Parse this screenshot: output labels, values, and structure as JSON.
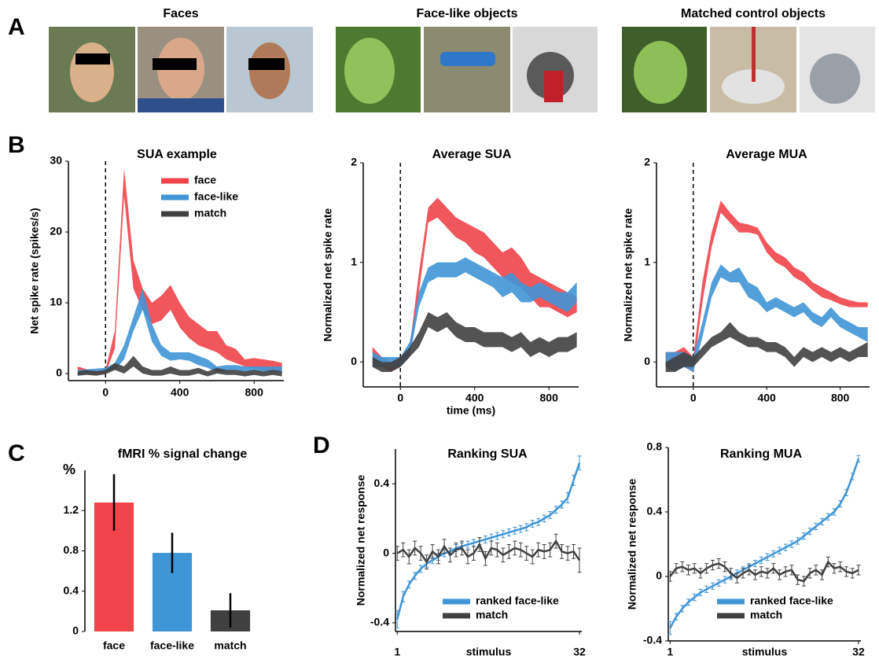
{
  "panel_labels": [
    "A",
    "B",
    "C",
    "D"
  ],
  "image_groups": [
    "Faces",
    "Face-like objects",
    "Matched control objects"
  ],
  "chart_data": [
    {
      "type": "area",
      "title": "SUA example",
      "ylabel": "Net spike rate (spikes/s)",
      "x": [
        -150,
        -100,
        -50,
        0,
        50,
        100,
        150,
        200,
        250,
        300,
        350,
        400,
        450,
        500,
        550,
        600,
        650,
        700,
        750,
        800,
        850,
        900,
        950
      ],
      "xlim": [
        -200,
        960
      ],
      "xticks": [
        0,
        400,
        800
      ],
      "ylim": [
        -1,
        30
      ],
      "yticks": [
        0,
        10,
        20,
        30
      ],
      "legend": true,
      "series": [
        {
          "name": "face",
          "color": "#f0444a",
          "upper": [
            1,
            0.6,
            0.5,
            0.6,
            6,
            29,
            16,
            12,
            10,
            11,
            12.5,
            10,
            8,
            7,
            6,
            6,
            4,
            3.5,
            2,
            2.2,
            2,
            1.8,
            1.5
          ],
          "lower": [
            0.2,
            0,
            -0.1,
            0,
            3.5,
            25,
            12,
            9,
            7,
            7.5,
            9,
            6.5,
            5,
            4,
            3.5,
            3,
            2,
            1.5,
            1,
            0.8,
            0.5,
            0.4,
            0.3
          ]
        },
        {
          "name": "face-like",
          "color": "#3f95d6",
          "upper": [
            0.5,
            0.6,
            0.7,
            0.8,
            1.5,
            4,
            8,
            12,
            7,
            4,
            3,
            3,
            3,
            2.5,
            2,
            1,
            1.2,
            1.2,
            1,
            1,
            1,
            1,
            1
          ],
          "lower": [
            -0.3,
            0,
            0.2,
            0.2,
            0.5,
            2,
            6,
            9,
            4.5,
            2.5,
            1.8,
            2,
            1.8,
            1.2,
            0.8,
            0.2,
            0.3,
            0.4,
            0.3,
            0.3,
            0.3,
            0.2,
            0.2
          ]
        },
        {
          "name": "match",
          "color": "#404040",
          "upper": [
            0.3,
            0.5,
            0.3,
            0.5,
            1.5,
            1,
            2.5,
            1,
            0.5,
            0.5,
            1,
            0.5,
            0.5,
            0.8,
            0.3,
            0.8,
            0.5,
            0.5,
            0.3,
            0.5,
            0.3,
            0.5,
            0.3
          ],
          "lower": [
            -0.3,
            -0.2,
            -0.3,
            -0.1,
            0.5,
            0,
            1,
            0,
            -0.3,
            -0.3,
            0,
            -0.3,
            -0.3,
            0,
            -0.4,
            0,
            -0.2,
            -0.2,
            -0.4,
            -0.2,
            -0.4,
            -0.2,
            -0.4
          ]
        }
      ]
    },
    {
      "type": "area",
      "title": "Average SUA",
      "ylabel": "Normalized net spike rate",
      "xlabel": "time (ms)",
      "x": [
        -150,
        -100,
        -50,
        0,
        50,
        100,
        150,
        200,
        250,
        300,
        350,
        400,
        450,
        500,
        550,
        600,
        650,
        700,
        750,
        800,
        850,
        900,
        950
      ],
      "xlim": [
        -200,
        960
      ],
      "xticks": [
        0,
        400,
        800
      ],
      "ylim": [
        -0.25,
        2
      ],
      "yticks": [
        0,
        1,
        2
      ],
      "series": [
        {
          "color": "#f0444a",
          "upper": [
            0.15,
            0.05,
            0,
            0.05,
            0.15,
            0.9,
            1.55,
            1.65,
            1.55,
            1.45,
            1.4,
            1.35,
            1.3,
            1.2,
            1.1,
            1.15,
            1.05,
            0.9,
            0.85,
            0.8,
            0.75,
            0.7,
            0.65
          ],
          "lower": [
            0,
            -0.05,
            -0.1,
            -0.05,
            0.05,
            0.7,
            1.4,
            1.45,
            1.35,
            1.25,
            1.2,
            1.1,
            1.05,
            0.95,
            0.85,
            0.8,
            0.75,
            0.65,
            0.55,
            0.55,
            0.5,
            0.45,
            0.5
          ]
        },
        {
          "color": "#3f95d6",
          "upper": [
            0.1,
            0.05,
            0.05,
            0.05,
            0.2,
            0.7,
            0.95,
            1,
            1,
            1,
            1.05,
            1,
            0.95,
            0.9,
            0.85,
            0.9,
            0.8,
            0.75,
            0.8,
            0.75,
            0.7,
            0.7,
            0.8
          ],
          "lower": [
            -0.05,
            -0.05,
            -0.05,
            -0.05,
            0.05,
            0.55,
            0.8,
            0.85,
            0.85,
            0.85,
            0.9,
            0.85,
            0.8,
            0.75,
            0.65,
            0.7,
            0.6,
            0.6,
            0.65,
            0.6,
            0.55,
            0.5,
            0.6
          ]
        },
        {
          "color": "#404040",
          "upper": [
            0.05,
            0,
            0,
            0.05,
            0.15,
            0.3,
            0.5,
            0.45,
            0.5,
            0.4,
            0.35,
            0.35,
            0.3,
            0.3,
            0.3,
            0.25,
            0.3,
            0.2,
            0.25,
            0.2,
            0.25,
            0.25,
            0.3
          ],
          "lower": [
            -0.05,
            -0.1,
            -0.1,
            -0.05,
            0.05,
            0.15,
            0.35,
            0.3,
            0.35,
            0.25,
            0.2,
            0.2,
            0.15,
            0.15,
            0.15,
            0.1,
            0.15,
            0.05,
            0.1,
            0.05,
            0.1,
            0.1,
            0.15
          ]
        }
      ]
    },
    {
      "type": "area",
      "title": "Average MUA",
      "ylabel": "Normalized net spike rate",
      "x": [
        -150,
        -100,
        -50,
        0,
        50,
        100,
        150,
        200,
        250,
        300,
        350,
        400,
        450,
        500,
        550,
        600,
        650,
        700,
        750,
        800,
        850,
        900,
        950
      ],
      "xlim": [
        -200,
        960
      ],
      "xticks": [
        0,
        400,
        800
      ],
      "ylim": [
        -0.25,
        2
      ],
      "yticks": [
        0,
        1,
        2
      ],
      "series": [
        {
          "color": "#f0444a",
          "upper": [
            0.1,
            0.1,
            0.15,
            0.05,
            0.8,
            1.3,
            1.62,
            1.5,
            1.4,
            1.38,
            1.35,
            1.2,
            1.1,
            1.05,
            0.95,
            0.9,
            0.8,
            0.75,
            0.7,
            0.65,
            0.62,
            0.6,
            0.6
          ],
          "lower": [
            -0.05,
            -0.05,
            -0.05,
            -0.1,
            0.6,
            1.15,
            1.5,
            1.4,
            1.3,
            1.3,
            1.28,
            1.1,
            1,
            0.95,
            0.85,
            0.8,
            0.72,
            0.65,
            0.62,
            0.58,
            0.55,
            0.55,
            0.55
          ]
        },
        {
          "color": "#3f95d6",
          "upper": [
            0.1,
            0.1,
            0.1,
            0.05,
            0.4,
            0.8,
            0.98,
            0.9,
            0.95,
            0.8,
            0.75,
            0.6,
            0.65,
            0.6,
            0.55,
            0.6,
            0.5,
            0.45,
            0.55,
            0.45,
            0.4,
            0.35,
            0.35
          ],
          "lower": [
            -0.05,
            -0.1,
            -0.05,
            -0.1,
            0.25,
            0.65,
            0.85,
            0.8,
            0.8,
            0.65,
            0.6,
            0.5,
            0.55,
            0.5,
            0.45,
            0.5,
            0.4,
            0.35,
            0.45,
            0.35,
            0.3,
            0.25,
            0.2
          ]
        },
        {
          "color": "#404040",
          "upper": [
            0,
            0.05,
            0.1,
            0.05,
            0.15,
            0.25,
            0.3,
            0.4,
            0.3,
            0.25,
            0.25,
            0.2,
            0.2,
            0.15,
            0.05,
            0.15,
            0.1,
            0.15,
            0.1,
            0.15,
            0.1,
            0.15,
            0.2
          ],
          "lower": [
            -0.1,
            -0.1,
            -0.05,
            -0.05,
            0.05,
            0.15,
            0.2,
            0.25,
            0.2,
            0.15,
            0.15,
            0.1,
            0.1,
            0.05,
            -0.05,
            0.05,
            0,
            0.05,
            0,
            0.05,
            0,
            0.05,
            0.05
          ]
        }
      ]
    },
    {
      "type": "bar",
      "title": "fMRI % signal change",
      "ylabel": "%",
      "categories": [
        "face",
        "face-like",
        "match"
      ],
      "values": [
        1.28,
        0.78,
        0.21
      ],
      "errors": [
        0.28,
        0.2,
        0.17
      ],
      "colors": [
        "#f0444a",
        "#3f95d6",
        "#404040"
      ],
      "ylim": [
        0,
        1.6
      ],
      "yticks": [
        0,
        0.4,
        0.8,
        1.2
      ]
    },
    {
      "type": "line",
      "title": "Ranking SUA",
      "ylabel": "Normalized net response",
      "xlabel": "stimulus",
      "x": [
        1,
        2,
        3,
        4,
        5,
        6,
        7,
        8,
        9,
        10,
        11,
        12,
        13,
        14,
        15,
        16,
        17,
        18,
        19,
        20,
        21,
        22,
        23,
        24,
        25,
        26,
        27,
        28,
        29,
        30,
        31,
        32
      ],
      "xlim": [
        0.7,
        32.4
      ],
      "xticks": [
        1,
        32
      ],
      "ylim": [
        -0.45,
        0.6
      ],
      "yticks": [
        -0.4,
        0,
        0.4
      ],
      "legend": true,
      "series": [
        {
          "name": "ranked face-like",
          "color": "#3f95d6",
          "values": [
            -0.38,
            -0.25,
            -0.18,
            -0.13,
            -0.09,
            -0.06,
            -0.04,
            -0.02,
            0,
            0.01,
            0.03,
            0.04,
            0.05,
            0.06,
            0.07,
            0.08,
            0.09,
            0.1,
            0.11,
            0.12,
            0.13,
            0.14,
            0.15,
            0.17,
            0.18,
            0.2,
            0.22,
            0.25,
            0.28,
            0.32,
            0.42,
            0.52
          ],
          "errors": [
            0.05,
            0.03,
            0.02,
            0.02,
            0.02,
            0.02,
            0.02,
            0.02,
            0.02,
            0.02,
            0.02,
            0.02,
            0.02,
            0.02,
            0.02,
            0.02,
            0.02,
            0.02,
            0.02,
            0.02,
            0.02,
            0.02,
            0.02,
            0.02,
            0.02,
            0.02,
            0.02,
            0.02,
            0.02,
            0.03,
            0.03,
            0.04
          ]
        },
        {
          "name": "match",
          "color": "#404040",
          "values": [
            0,
            0.02,
            -0.02,
            0.03,
            0,
            -0.05,
            0.01,
            -0.02,
            0.04,
            -0.01,
            0.02,
            0.03,
            -0.02,
            0,
            0.05,
            -0.03,
            0.03,
            0.02,
            -0.01,
            0.01,
            0.03,
            0.02,
            0,
            -0.02,
            0.02,
            0.01,
            0.02,
            0.07,
            0.01,
            0,
            0.01,
            -0.04
          ],
          "errors": [
            0.04,
            0.04,
            0.04,
            0.04,
            0.04,
            0.04,
            0.04,
            0.04,
            0.04,
            0.04,
            0.04,
            0.04,
            0.04,
            0.04,
            0.04,
            0.04,
            0.04,
            0.04,
            0.04,
            0.04,
            0.04,
            0.04,
            0.04,
            0.04,
            0.04,
            0.04,
            0.04,
            0.04,
            0.04,
            0.04,
            0.04,
            0.07
          ]
        }
      ]
    },
    {
      "type": "line",
      "title": "Ranking MUA",
      "ylabel": "Normalized net response",
      "xlabel": "stimulus",
      "x": [
        1,
        2,
        3,
        4,
        5,
        6,
        7,
        8,
        9,
        10,
        11,
        12,
        13,
        14,
        15,
        16,
        17,
        18,
        19,
        20,
        21,
        22,
        23,
        24,
        25,
        26,
        27,
        28,
        29,
        30,
        31,
        32
      ],
      "xlim": [
        0.7,
        32.4
      ],
      "xticks": [
        1,
        32
      ],
      "ylim": [
        -0.4,
        0.8
      ],
      "yticks": [
        -0.4,
        0,
        0.4,
        0.8
      ],
      "legend": true,
      "series": [
        {
          "name": "ranked face-like",
          "color": "#3f95d6",
          "values": [
            -0.32,
            -0.25,
            -0.2,
            -0.16,
            -0.13,
            -0.1,
            -0.08,
            -0.06,
            -0.04,
            -0.02,
            0,
            0.02,
            0.04,
            0.06,
            0.08,
            0.1,
            0.12,
            0.14,
            0.16,
            0.18,
            0.2,
            0.22,
            0.25,
            0.28,
            0.31,
            0.34,
            0.37,
            0.4,
            0.45,
            0.52,
            0.62,
            0.73
          ],
          "errors": [
            0.04,
            0.02,
            0.02,
            0.02,
            0.02,
            0.02,
            0.02,
            0.02,
            0.02,
            0.02,
            0.02,
            0.02,
            0.02,
            0.02,
            0.02,
            0.02,
            0.02,
            0.02,
            0.02,
            0.02,
            0.02,
            0.02,
            0.02,
            0.02,
            0.02,
            0.02,
            0.02,
            0.02,
            0.02,
            0.02,
            0.02,
            0.02
          ]
        },
        {
          "name": "match",
          "color": "#404040",
          "values": [
            0,
            0.05,
            0.06,
            0.04,
            0.05,
            0.02,
            0.05,
            0.07,
            0.08,
            0.06,
            0.02,
            -0.01,
            0.02,
            0.04,
            0.01,
            0.03,
            0.02,
            0.05,
            0.01,
            0.03,
            0.04,
            -0.02,
            -0.03,
            0.02,
            0.04,
            0.01,
            0.09,
            0.05,
            0.06,
            0.03,
            0.02,
            0.04
          ],
          "errors": [
            0.03,
            0.03,
            0.03,
            0.03,
            0.03,
            0.03,
            0.03,
            0.03,
            0.03,
            0.03,
            0.03,
            0.03,
            0.03,
            0.03,
            0.03,
            0.03,
            0.03,
            0.03,
            0.03,
            0.03,
            0.03,
            0.03,
            0.03,
            0.03,
            0.03,
            0.03,
            0.03,
            0.03,
            0.03,
            0.03,
            0.03,
            0.03
          ]
        }
      ]
    }
  ]
}
